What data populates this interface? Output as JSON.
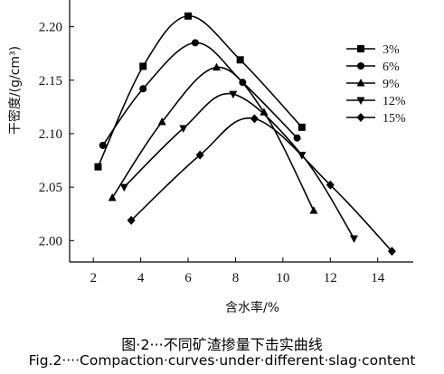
{
  "chart_data": {
    "type": "line",
    "xlabel": "含水率/%",
    "ylabel": "干密度/(g/cm³)",
    "xlim": [
      1,
      15.5
    ],
    "ylim": [
      1.98,
      2.225
    ],
    "xticks": [
      2,
      4,
      6,
      8,
      10,
      12,
      14
    ],
    "yticks": [
      2.0,
      2.05,
      2.1,
      2.15,
      2.2
    ],
    "ytick_labels": [
      "2.00",
      "2.05",
      "2.10",
      "2.15",
      "2.20"
    ],
    "legend_position": "top-right",
    "series": [
      {
        "name": "3%",
        "marker": "square",
        "x": [
          2.2,
          4.1,
          6.0,
          8.2,
          10.8
        ],
        "y": [
          2.069,
          2.163,
          2.21,
          2.169,
          2.106
        ]
      },
      {
        "name": "6%",
        "marker": "circle",
        "x": [
          2.4,
          4.1,
          6.3,
          8.3,
          10.6
        ],
        "y": [
          2.089,
          2.142,
          2.185,
          2.148,
          2.096
        ]
      },
      {
        "name": "9%",
        "marker": "triangle-up",
        "x": [
          2.8,
          4.9,
          7.2,
          9.2,
          11.3
        ],
        "y": [
          2.04,
          2.111,
          2.162,
          2.12,
          2.028
        ]
      },
      {
        "name": "12%",
        "marker": "triangle-down",
        "x": [
          3.3,
          5.8,
          7.9,
          10.8,
          13.0
        ],
        "y": [
          2.05,
          2.105,
          2.137,
          2.08,
          2.002
        ]
      },
      {
        "name": "15%",
        "marker": "diamond",
        "x": [
          3.6,
          6.5,
          8.8,
          12.0,
          14.6
        ],
        "y": [
          2.019,
          2.08,
          2.114,
          2.052,
          1.99
        ]
      }
    ]
  },
  "caption": {
    "chinese": "图·2···不同矿渣掺量下击实曲线",
    "english": "Fig.2····Compaction·curves·under·different·slag·content"
  }
}
